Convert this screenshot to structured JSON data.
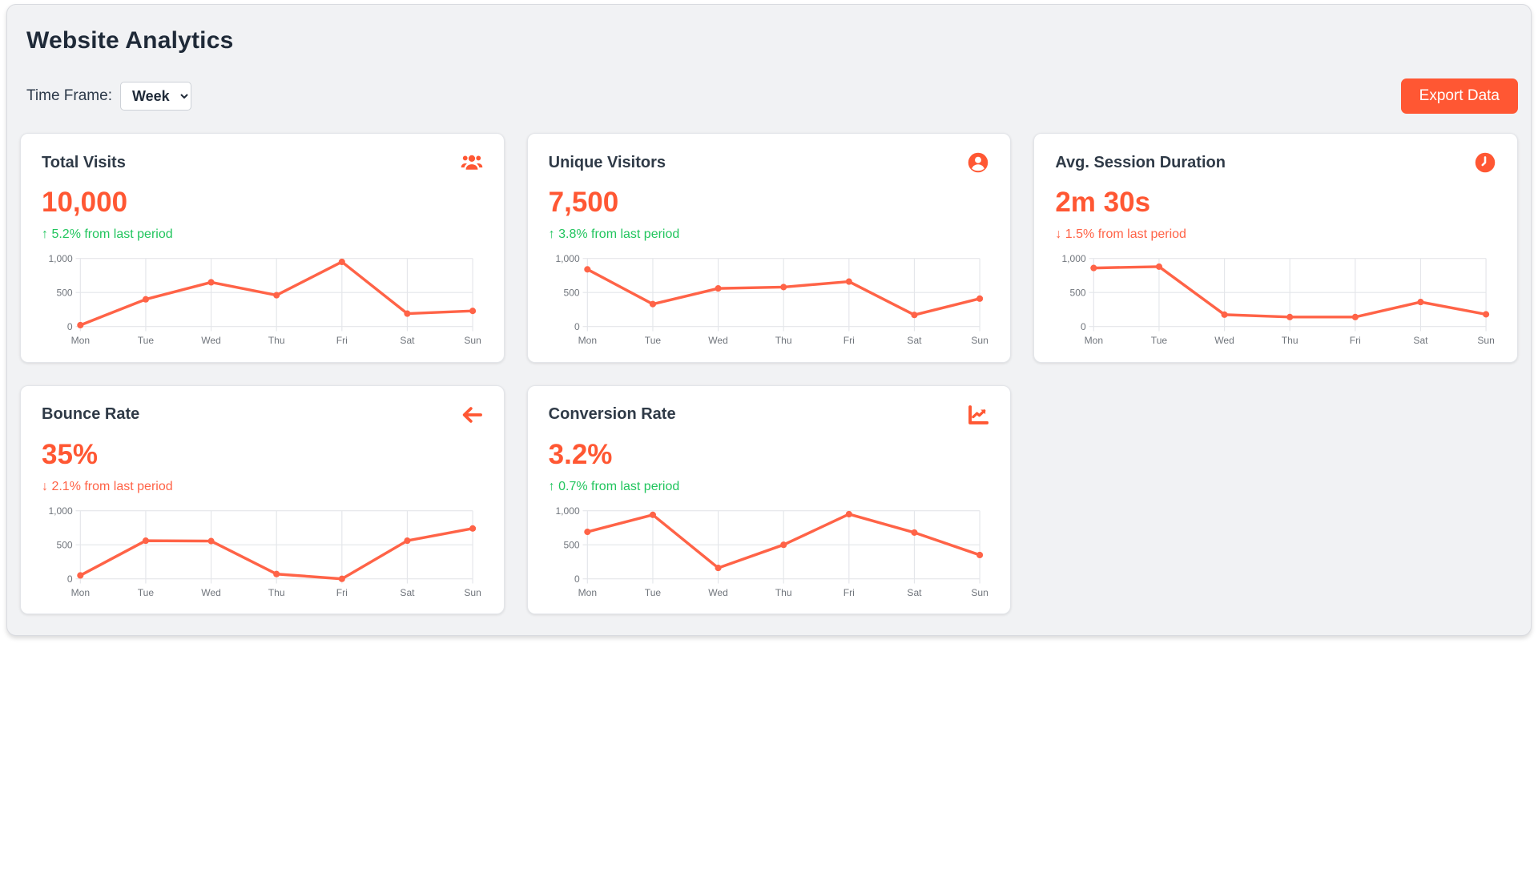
{
  "header": {
    "title": "Website Analytics"
  },
  "controls": {
    "timeframe_label": "Time Frame:",
    "timeframe_value": "Week",
    "export_label": "Export Data"
  },
  "colors": {
    "accent": "#ff5733",
    "line": "#ff6347",
    "grid": "#e4e6ea",
    "trend_up": "#22c55e",
    "trend_down": "#ff6347"
  },
  "cards": [
    {
      "title": "Total Visits",
      "icon": "users-icon",
      "value": "10,000",
      "trend": {
        "text": "↑ 5.2% from last period",
        "direction": "up",
        "color": "#22c55e"
      }
    },
    {
      "title": "Unique Visitors",
      "icon": "user-circle-icon",
      "value": "7,500",
      "trend": {
        "text": "↑ 3.8% from last period",
        "direction": "up",
        "color": "#22c55e"
      }
    },
    {
      "title": "Avg. Session Duration",
      "icon": "clock-icon",
      "value": "2m 30s",
      "trend": {
        "text": "↓ 1.5% from last period",
        "direction": "down",
        "color": "#ff6347"
      }
    },
    {
      "title": "Bounce Rate",
      "icon": "arrow-left-icon",
      "value": "35%",
      "trend": {
        "text": "↓ 2.1% from last period",
        "direction": "down",
        "color": "#ff6347"
      }
    },
    {
      "title": "Conversion Rate",
      "icon": "chart-line-icon",
      "value": "3.2%",
      "trend": {
        "text": "↑ 0.7% from last period",
        "direction": "up",
        "color": "#22c55e"
      }
    }
  ],
  "chart_data": {
    "type": "line",
    "categories": [
      "Mon",
      "Tue",
      "Wed",
      "Thu",
      "Fri",
      "Sat",
      "Sun"
    ],
    "ylim": [
      0,
      1000
    ],
    "yticks": [
      0,
      500,
      1000
    ],
    "ytick_labels": [
      "0",
      "500",
      "1,000"
    ],
    "grid": true,
    "legend": "none",
    "series": [
      {
        "name": "Total Visits",
        "values": [
          20,
          400,
          650,
          460,
          950,
          190,
          230
        ]
      },
      {
        "name": "Unique Visitors",
        "values": [
          840,
          330,
          560,
          580,
          660,
          170,
          410
        ]
      },
      {
        "name": "Avg. Session Duration",
        "values": [
          860,
          880,
          175,
          140,
          140,
          360,
          180
        ]
      },
      {
        "name": "Bounce Rate",
        "values": [
          50,
          560,
          555,
          70,
          0,
          560,
          740
        ]
      },
      {
        "name": "Conversion Rate",
        "values": [
          690,
          940,
          160,
          500,
          950,
          680,
          350
        ]
      }
    ]
  }
}
